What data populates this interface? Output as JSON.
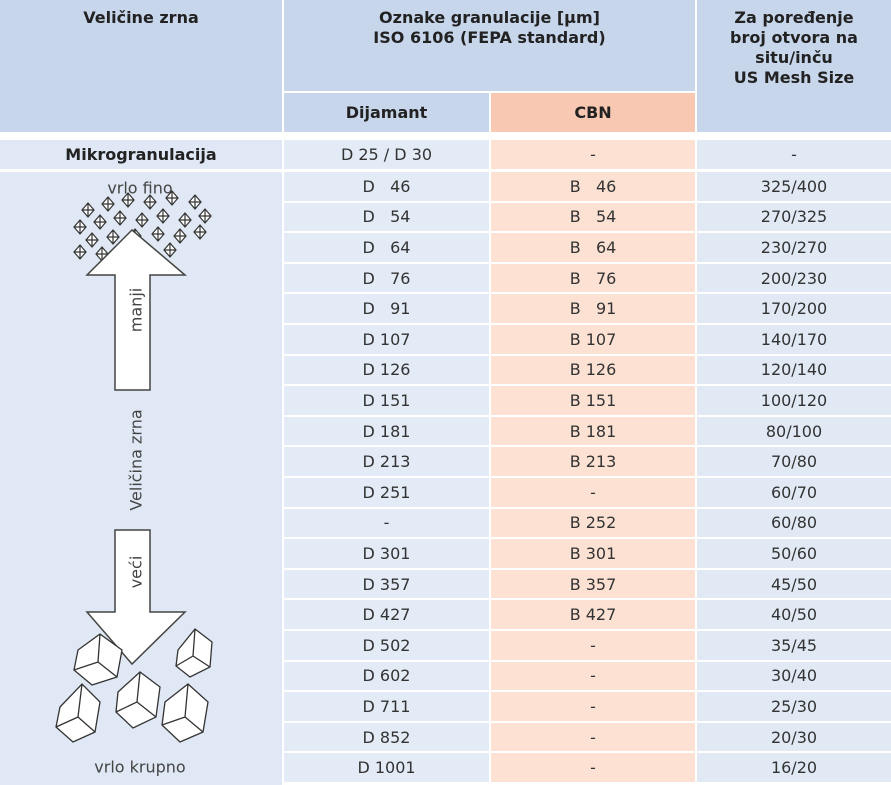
{
  "header": {
    "size": "Veličine zrna",
    "designation": [
      "Oznake granulacije [µm]",
      "ISO 6106 (FEPA standard)"
    ],
    "compare": [
      "Za poređenje",
      "broj otvora na",
      "situ/inču",
      "US Mesh Size"
    ],
    "diamond": "Dijamant",
    "cbn": "CBN"
  },
  "micro": [
    "Mikrogranulacija",
    "D 25 / D 30",
    "-",
    "-"
  ],
  "side": {
    "top": "vrlo fino",
    "up": "manji",
    "axis": "Veličina zrna",
    "down": "veći",
    "bottom": "vrlo krupno"
  },
  "rows": [
    [
      "D   46",
      "B   46",
      "325/400"
    ],
    [
      "D   54",
      "B   54",
      "270/325"
    ],
    [
      "D   64",
      "B   64",
      "230/270"
    ],
    [
      "D   76",
      "B   76",
      "200/230"
    ],
    [
      "D   91",
      "B   91",
      "170/200"
    ],
    [
      "D 107",
      "B 107",
      "140/170"
    ],
    [
      "D 126",
      "B 126",
      "120/140"
    ],
    [
      "D 151",
      "B 151",
      "100/120"
    ],
    [
      "D 181",
      "B 181",
      "80/100"
    ],
    [
      "D 213",
      "B 213",
      "70/80"
    ],
    [
      "D 251",
      "-",
      "60/70"
    ],
    [
      "-",
      "B 252",
      "60/80"
    ],
    [
      "D 301",
      "B 301",
      "50/60"
    ],
    [
      "D 357",
      "B 357",
      "45/50"
    ],
    [
      "D 427",
      "B 427",
      "40/50"
    ],
    [
      "D 502",
      "-",
      "35/45"
    ],
    [
      "D 602",
      "-",
      "30/40"
    ],
    [
      "D 711",
      "-",
      "25/30"
    ],
    [
      "D 852",
      "-",
      "20/30"
    ],
    [
      "D 1001",
      "-",
      "16/20"
    ]
  ]
}
